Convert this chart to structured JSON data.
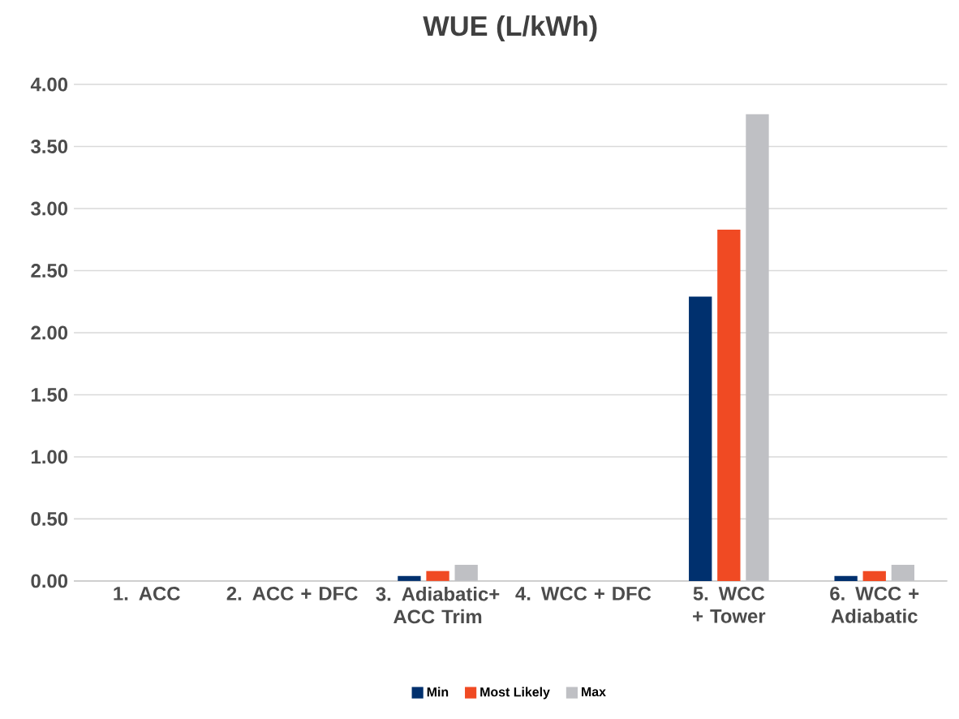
{
  "chart_data": {
    "type": "bar",
    "title": "WUE (L/kWh)",
    "categories": [
      "1. ACC",
      "2. ACC + DFC",
      "3. Adiabatic+ ACC Trim",
      "4. WCC + DFC",
      "5. WCC + Tower",
      "6. WCC + Adiabatic"
    ],
    "series": [
      {
        "name": "Min",
        "color": "#00306e",
        "values": [
          0,
          0,
          0.04,
          0,
          2.29,
          0.04
        ]
      },
      {
        "name": "Most Likely",
        "color": "#f04a23",
        "values": [
          0,
          0,
          0.08,
          0,
          2.83,
          0.08
        ]
      },
      {
        "name": "Max",
        "color": "#bfc0c4",
        "values": [
          0,
          0,
          0.13,
          0,
          3.76,
          0.13
        ]
      }
    ],
    "ylim": [
      0,
      4
    ],
    "yticks": [
      {
        "value": 0,
        "label": "0.00"
      },
      {
        "value": 0.5,
        "label": "0.50"
      },
      {
        "value": 1,
        "label": "1.00"
      },
      {
        "value": 1.5,
        "label": "1.50"
      },
      {
        "value": 2,
        "label": "2.00"
      },
      {
        "value": 2.5,
        "label": "2.50"
      },
      {
        "value": 3,
        "label": "3.00"
      },
      {
        "value": 3.5,
        "label": "3.50"
      },
      {
        "value": 4,
        "label": "4.00"
      }
    ],
    "grid": "y",
    "legend": "bottom"
  }
}
